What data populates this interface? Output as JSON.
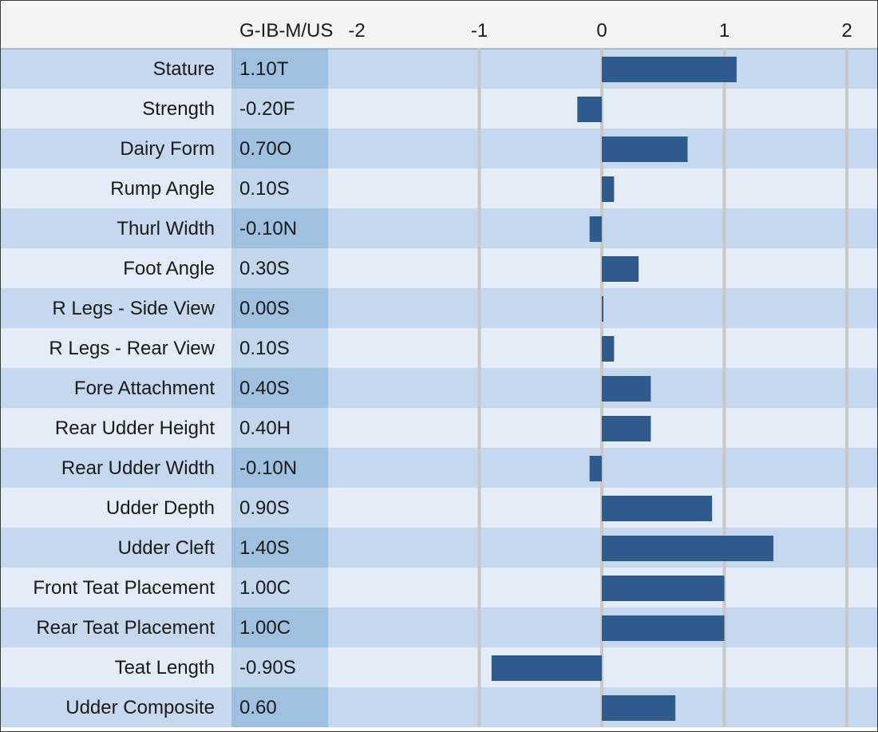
{
  "chart_data": {
    "type": "bar",
    "orientation": "horizontal",
    "value_column_header": "G-IB-M/US",
    "x_ticks": [
      "-2",
      "-1",
      "0",
      "1",
      "2"
    ],
    "xlim": [
      -2,
      2
    ],
    "grid": true,
    "categories": [
      "Stature",
      "Strength",
      "Dairy Form",
      "Rump Angle",
      "Thurl Width",
      "Foot Angle",
      "R Legs - Side View",
      "R Legs - Rear View",
      "Fore Attachment",
      "Rear Udder Height",
      "Rear Udder Width",
      "Udder Depth",
      "Udder Cleft",
      "Front Teat Placement",
      "Rear Teat Placement",
      "Teat Length",
      "Udder Composite"
    ],
    "value_labels": [
      "1.10T",
      "-0.20F",
      "0.70O",
      "0.10S",
      "-0.10N",
      "0.30S",
      "0.00S",
      "0.10S",
      "0.40S",
      "0.40H",
      "-0.10N",
      "0.90S",
      "1.40S",
      "1.00C",
      "1.00C",
      "-0.90S",
      "0.60"
    ],
    "values": [
      1.1,
      -0.2,
      0.7,
      0.1,
      -0.1,
      0.3,
      0.0,
      0.1,
      0.4,
      0.4,
      -0.1,
      0.9,
      1.4,
      1.0,
      1.0,
      -0.9,
      0.6
    ],
    "colors": {
      "bar": "#2e5a8c",
      "row_dark": "#c5d8ee",
      "row_light": "#e4ecf6",
      "value_col_dark": "#a0c0e0",
      "value_col_light": "#c2d6ec",
      "header_bg": "#f4f4f4",
      "gridline": "#c8c8c8"
    }
  }
}
